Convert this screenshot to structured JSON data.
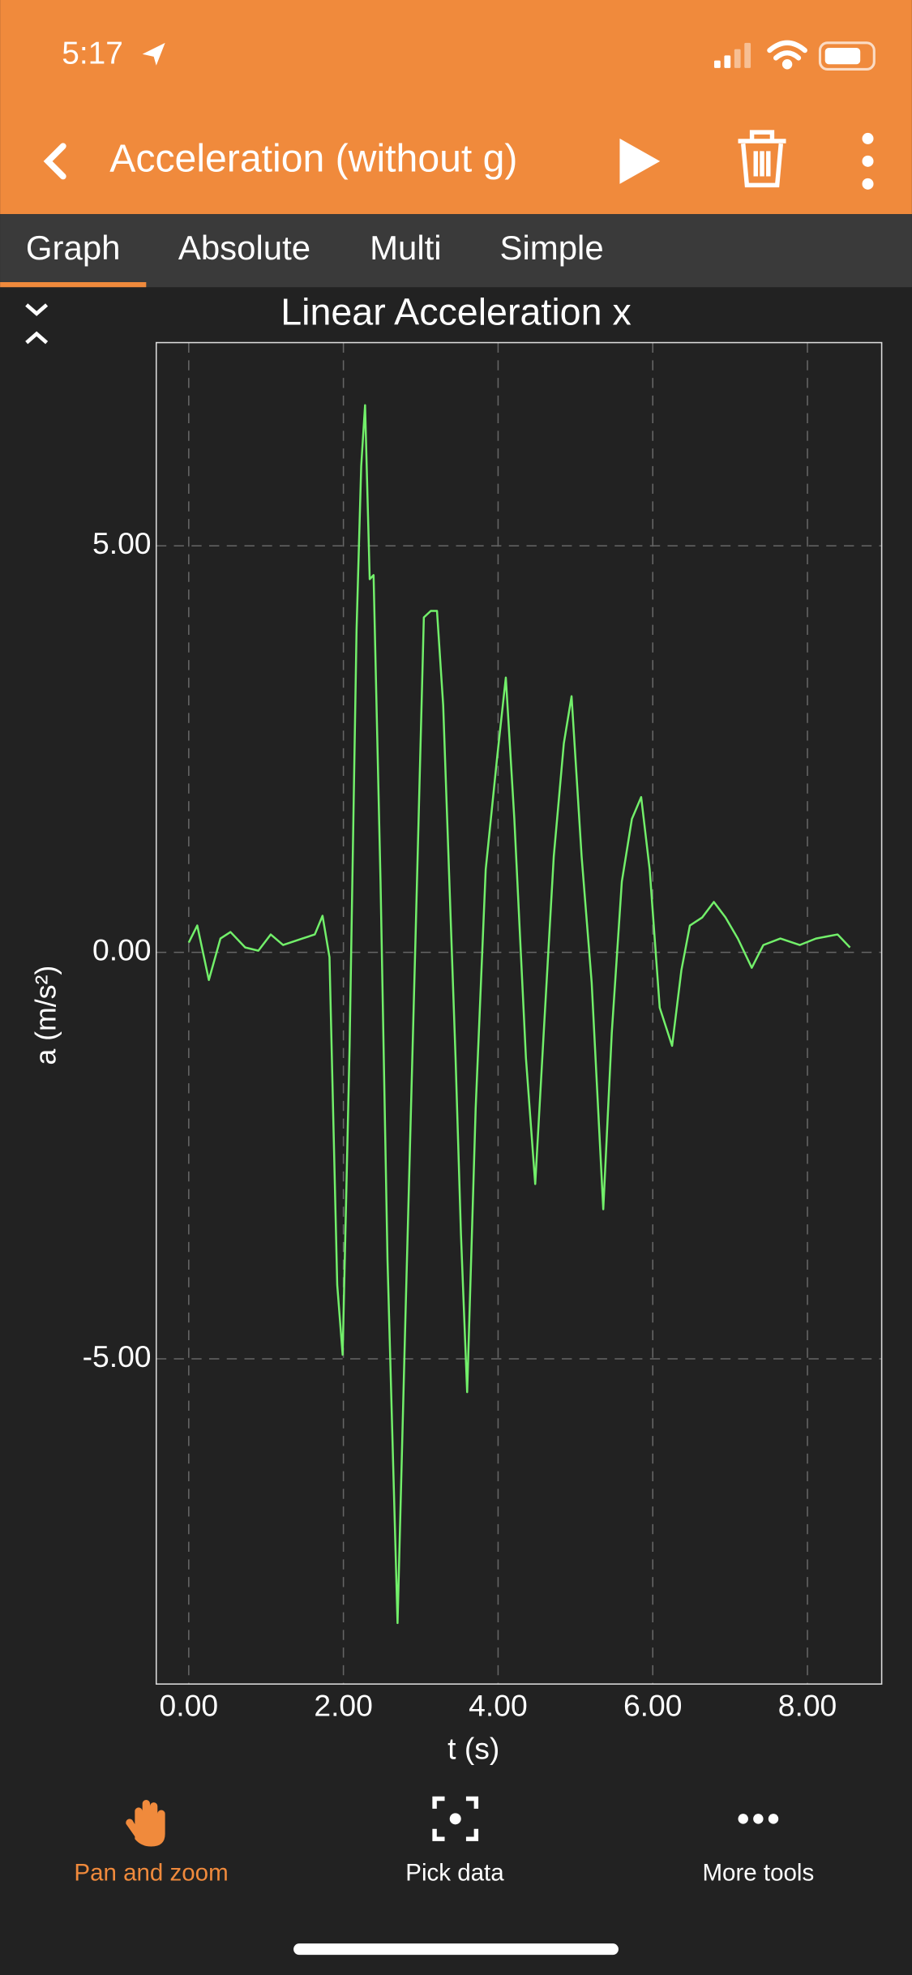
{
  "status_bar": {
    "time": "5:17"
  },
  "header": {
    "title": "Acceleration (without g)"
  },
  "tabs": [
    "Graph",
    "Absolute",
    "Multi",
    "Simple"
  ],
  "chart_data": {
    "type": "line",
    "title": "Linear Acceleration x",
    "x_label": "t (s)",
    "y_label": "a (m/s²)",
    "xlim": [
      -0.42,
      8.96
    ],
    "ylim": [
      -9.0,
      7.5
    ],
    "xticks": [
      {
        "value": 0,
        "label": "0.00"
      },
      {
        "value": 2,
        "label": "2.00"
      },
      {
        "value": 4,
        "label": "4.00"
      },
      {
        "value": 6,
        "label": "6.00"
      },
      {
        "value": 8,
        "label": "8.00"
      }
    ],
    "yticks": [
      {
        "value": -5,
        "label": "-5.00"
      },
      {
        "value": 0,
        "label": "0.00"
      },
      {
        "value": 5,
        "label": "5.00"
      }
    ],
    "grid": true,
    "color": "#72ef6a",
    "x": [
      0,
      0.11,
      0.26,
      0.41,
      0.54,
      0.73,
      0.9,
      1.06,
      1.22,
      1.47,
      1.63,
      1.73,
      1.82,
      1.92,
      1.99,
      2.08,
      2.17,
      2.23,
      2.28,
      2.34,
      2.39,
      2.48,
      2.57,
      2.7,
      2.8,
      2.93,
      3.04,
      3.13,
      3.21,
      3.29,
      3.45,
      3.52,
      3.6,
      3.71,
      3.84,
      3.99,
      4.1,
      4.21,
      4.36,
      4.48,
      4.59,
      4.72,
      4.85,
      4.95,
      5.08,
      5.21,
      5.36,
      5.47,
      5.6,
      5.73,
      5.85,
      5.96,
      6.09,
      6.25,
      6.37,
      6.48,
      6.64,
      6.79,
      6.94,
      7.1,
      7.28,
      7.43,
      7.65,
      7.9,
      8.11,
      8.39,
      8.55
    ],
    "values": [
      0.12,
      0.33,
      -0.34,
      0.17,
      0.25,
      0.06,
      0.02,
      0.22,
      0.09,
      0.17,
      0.22,
      0.45,
      -0.06,
      -4.09,
      -4.95,
      -1.15,
      3.97,
      5.98,
      6.73,
      4.59,
      4.64,
      0.87,
      -3.78,
      -8.25,
      -4.56,
      0.09,
      4.12,
      4.2,
      4.2,
      3.04,
      -1.3,
      -3.47,
      -5.41,
      -1.92,
      1.02,
      2.42,
      3.38,
      1.64,
      -1.3,
      -2.85,
      -0.99,
      1.18,
      2.57,
      3.15,
      1.18,
      -0.37,
      -3.16,
      -0.99,
      0.87,
      1.64,
      1.91,
      1.02,
      -0.68,
      -1.15,
      -0.22,
      0.33,
      0.43,
      0.62,
      0.43,
      0.17,
      -0.19,
      0.09,
      0.17,
      0.09,
      0.17,
      0.22,
      0.06
    ]
  },
  "toolbar": [
    "Pan and zoom",
    "Pick data",
    "More tools"
  ]
}
